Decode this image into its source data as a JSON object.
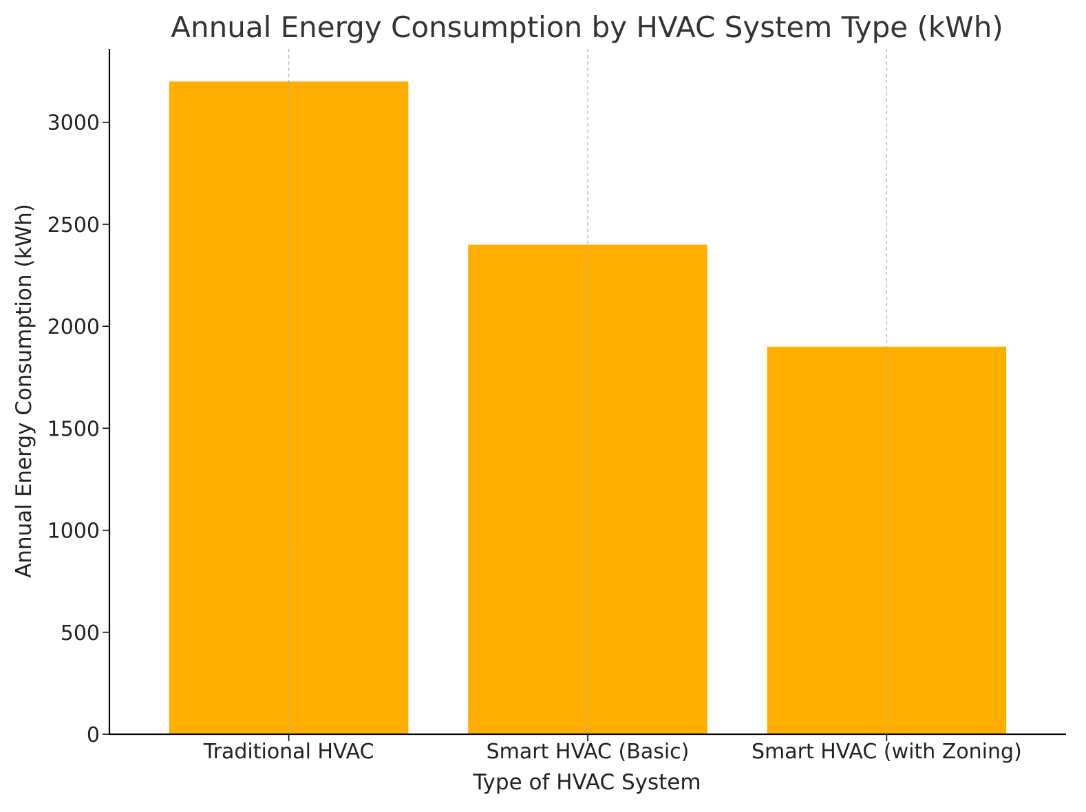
{
  "chart_data": {
    "type": "bar",
    "title": "Annual Energy Consumption by HVAC System Type (kWh)",
    "xlabel": "Type of HVAC System",
    "ylabel": "Annual Energy Consumption (kWh)",
    "categories": [
      "Traditional HVAC",
      "Smart HVAC (Basic)",
      "Smart HVAC (with Zoning)"
    ],
    "values": [
      3200,
      2400,
      1900
    ],
    "ylim": [
      0,
      3360
    ],
    "yticks": [
      0,
      500,
      1000,
      1500,
      2000,
      2500,
      3000
    ],
    "grid": "vertical dashed lines at category positions",
    "legend": "none",
    "bar_color": "#FFAE00",
    "grid_color": "#B0B0B0"
  }
}
